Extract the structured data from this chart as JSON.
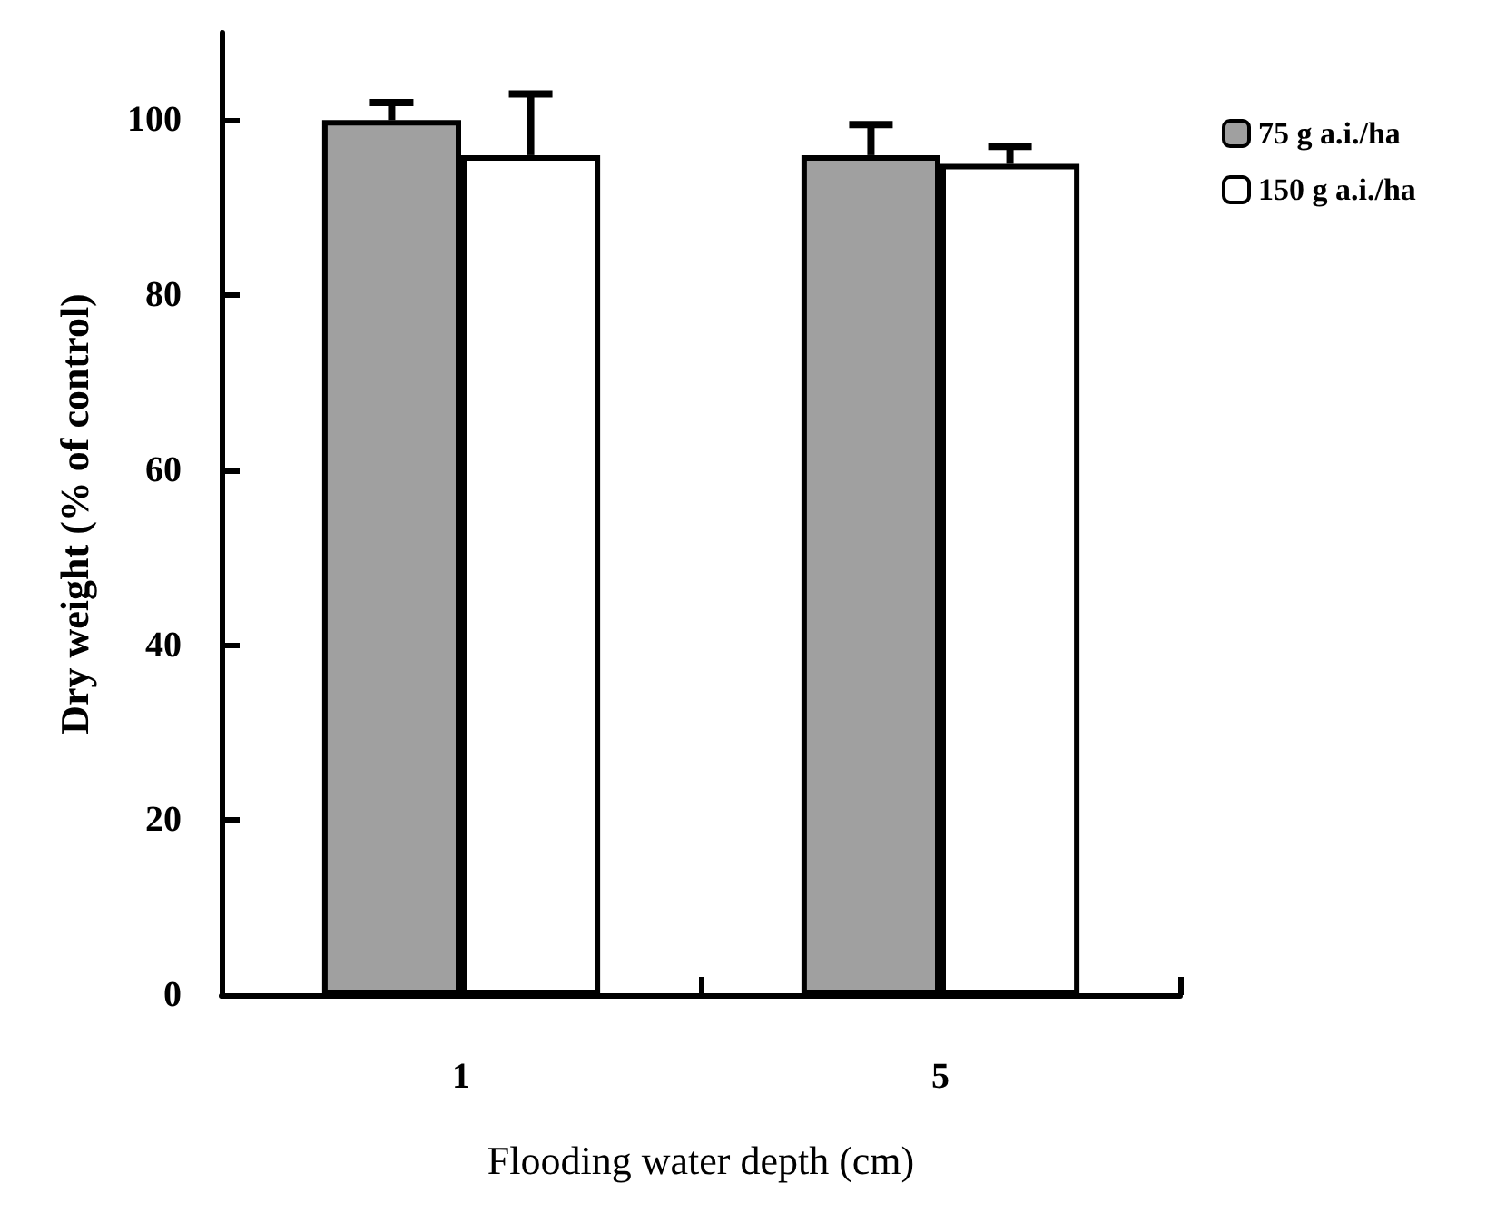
{
  "chart_data": {
    "type": "bar",
    "xlabel": "Flooding water depth (cm)",
    "ylabel": "Dry weight (% of control)",
    "categories": [
      "1",
      "5"
    ],
    "series": [
      {
        "name": "75 g a.i./ha",
        "color": "#a0a0a0",
        "values": [
          100,
          96
        ],
        "errors": [
          [
            100,
            102
          ],
          [
            96,
            99.5
          ]
        ]
      },
      {
        "name": "150 g a.i./ha",
        "color": "#ffffff",
        "values": [
          96,
          95
        ],
        "errors": [
          [
            96,
            103
          ],
          [
            95,
            97
          ]
        ]
      }
    ],
    "ylim": [
      0,
      110
    ],
    "yticks": [
      0,
      20,
      40,
      60,
      80,
      100
    ],
    "grid": false,
    "legend": "right"
  }
}
